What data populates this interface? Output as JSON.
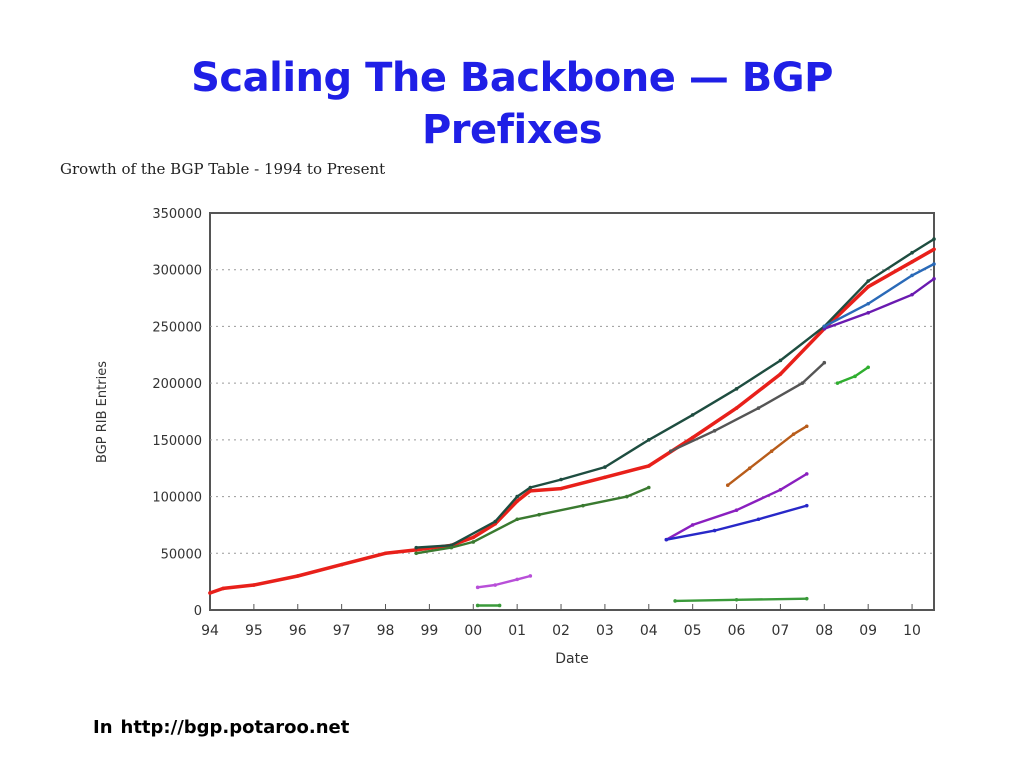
{
  "slide": {
    "title": "Scaling The Backbone — BGP Prefixes",
    "source_prefix": "In",
    "source_url": "http://bgp.potaroo.net"
  },
  "chart_data": {
    "type": "line",
    "title": "Growth of the BGP Table - 1994 to Present",
    "xlabel": "Date",
    "ylabel": "BGP RIB Entries",
    "xlim": [
      1994.0,
      2010.5
    ],
    "ylim": [
      0,
      350000
    ],
    "x_ticks": [
      "94",
      "95",
      "96",
      "97",
      "98",
      "99",
      "00",
      "01",
      "02",
      "03",
      "04",
      "05",
      "06",
      "07",
      "08",
      "09",
      "10"
    ],
    "y_ticks": [
      0,
      50000,
      100000,
      150000,
      200000,
      250000,
      300000,
      350000
    ],
    "grid": true,
    "legend": "none",
    "series": [
      {
        "color": "#e8201a",
        "x": [
          1994.0,
          1994.3,
          1995.0,
          1996.0,
          1997.0,
          1998.0,
          1998.7,
          1999.5,
          2000.0,
          2000.5,
          2001.0,
          2001.3,
          2002.0,
          2003.0,
          2004.0,
          2005.0,
          2006.0,
          2007.0,
          2008.0,
          2009.0,
          2010.0,
          2010.5
        ],
        "y": [
          15000,
          19000,
          22000,
          30000,
          40000,
          50000,
          53000,
          57000,
          64000,
          76000,
          96000,
          105000,
          107000,
          117000,
          127000,
          152000,
          178000,
          208000,
          248000,
          285000,
          307000,
          318000
        ]
      },
      {
        "color": "#1e4d40",
        "x": [
          1998.7,
          1999.5,
          2000.5,
          2001.0,
          2001.3,
          2002.0,
          2003.0,
          2004.0,
          2005.0,
          2006.0,
          2007.0,
          2008.0,
          2009.0,
          2010.0,
          2010.5
        ],
        "y": [
          55000,
          57000,
          78000,
          100000,
          108000,
          115000,
          126000,
          150000,
          172000,
          195000,
          220000,
          250000,
          290000,
          315000,
          327000
        ]
      },
      {
        "color": "#3a7a30",
        "x": [
          1998.7,
          1999.5,
          2000.0,
          2001.0,
          2001.5,
          2002.5,
          2003.5,
          2004.0
        ],
        "y": [
          50000,
          55000,
          60000,
          80000,
          84000,
          92000,
          100000,
          108000
        ]
      },
      {
        "color": "#8a1fbf",
        "x": [
          2004.4,
          2005.0,
          2006.0,
          2007.0,
          2007.6
        ],
        "y": [
          62000,
          75000,
          88000,
          106000,
          120000
        ]
      },
      {
        "color": "#2828c8",
        "x": [
          2004.4,
          2005.5,
          2006.5,
          2007.6
        ],
        "y": [
          62000,
          70000,
          80000,
          92000
        ]
      },
      {
        "color": "#b85c1a",
        "x": [
          2005.8,
          2006.3,
          2006.8,
          2007.3,
          2007.6
        ],
        "y": [
          110000,
          125000,
          140000,
          155000,
          162000
        ]
      },
      {
        "color": "#b84fd8",
        "x": [
          2000.1,
          2000.5,
          2001.0,
          2001.3
        ],
        "y": [
          20000,
          22000,
          27000,
          30000
        ]
      },
      {
        "color": "#3a9a3a",
        "x": [
          2004.6,
          2006.0,
          2007.6
        ],
        "y": [
          8000,
          9000,
          10000
        ]
      },
      {
        "color": "#3a9a3a",
        "x": [
          2000.1,
          2000.6
        ],
        "y": [
          4000,
          4000
        ]
      },
      {
        "color": "#2fae2f",
        "x": [
          2008.3,
          2008.7,
          2009.0
        ],
        "y": [
          200000,
          206000,
          214000
        ]
      },
      {
        "color": "#6a1ab0",
        "x": [
          2008.0,
          2009.0,
          2010.0,
          2010.5
        ],
        "y": [
          248000,
          262000,
          278000,
          292000
        ]
      },
      {
        "color": "#2a6ab8",
        "x": [
          2008.0,
          2009.0,
          2010.0,
          2010.5
        ],
        "y": [
          250000,
          270000,
          295000,
          305000
        ]
      },
      {
        "color": "#555555",
        "x": [
          2004.5,
          2005.5,
          2006.5,
          2007.5,
          2008.0
        ],
        "y": [
          140000,
          158000,
          178000,
          200000,
          218000
        ]
      }
    ]
  }
}
